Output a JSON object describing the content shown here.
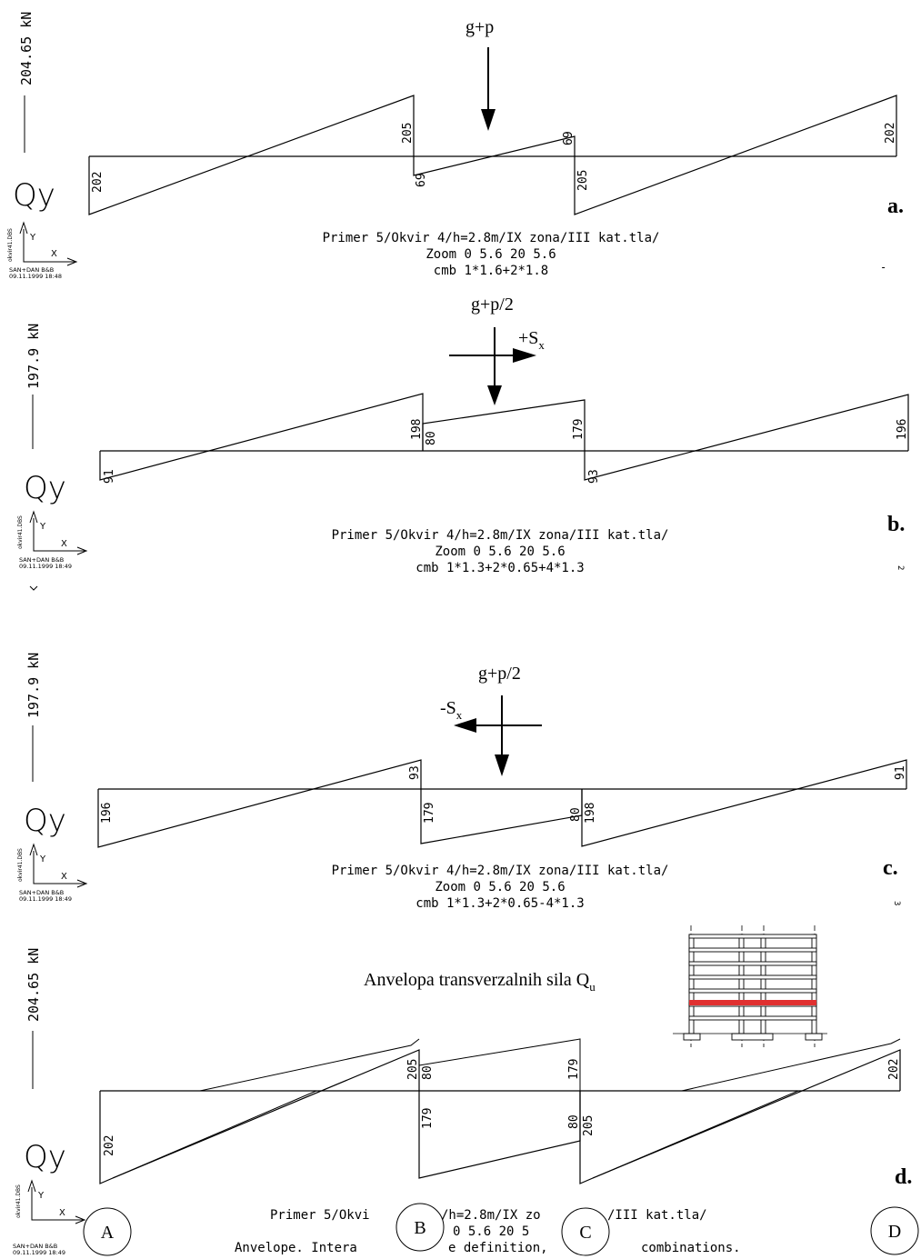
{
  "panels": [
    {
      "scale_label": "204.65 kN",
      "axis_symbol": "Qy",
      "load_label": "g+p",
      "seismic_label": "",
      "panel_letter": "a.",
      "caption_lines": [
        "Primer 5/Okvir 4/h=2.8m/IX zona/III kat.tla/",
        "Zoom 0 5.6 20 5.6",
        "cmb 1*1.6+2*1.8"
      ],
      "corner_mark": "-",
      "values": [
        "202",
        "205",
        "69",
        "69",
        "205",
        "202"
      ]
    },
    {
      "scale_label": "197.9 kN",
      "axis_symbol": "Qy",
      "load_label": "g+p/2",
      "seismic_label": "+Sx",
      "panel_letter": "b.",
      "caption_lines": [
        "Primer 5/Okvir 4/h=2.8m/IX zona/III kat.tla/",
        "Zoom 0 5.6 20 5.6",
        "cmb 1*1.3+2*0.65+4*1.3"
      ],
      "corner_mark": "2",
      "values": [
        "91",
        "198",
        "80",
        "179",
        "93",
        "196"
      ]
    },
    {
      "scale_label": "197.9 kN",
      "axis_symbol": "Qy",
      "load_label": "g+p/2",
      "seismic_label": "-Sx",
      "panel_letter": "c.",
      "caption_lines": [
        "Primer 5/Okvir 4/h=2.8m/IX zona/III kat.tla/",
        "Zoom 0 5.6 20 5.6",
        "cmb 1*1.3+2*0.65-4*1.3"
      ],
      "corner_mark": "3",
      "values": [
        "196",
        "93",
        "179",
        "80",
        "198",
        "91"
      ]
    },
    {
      "scale_label": "204.65 kN",
      "axis_symbol": "Qy",
      "load_label": "",
      "seismic_label": "",
      "panel_letter": "d.",
      "caption_lines": [
        "Primer 5/Okvi",
        "/h=2.8m/IX zo",
        "/III kat.tla/",
        "0 5.6 20 5",
        "Anvelope. Intera",
        "e definition,",
        "combinations."
      ],
      "corner_mark": "",
      "values": [
        "202",
        "205",
        "80",
        "179",
        "179",
        "80",
        "205",
        "202"
      ]
    }
  ],
  "stamp": {
    "file_label": "okvir41.DBS",
    "axis_y": "Y",
    "axis_x": "X",
    "program": "SAN+DAN B&B",
    "dates": [
      "09.11.1999 18:48",
      "09.11.1999 18:49",
      "09.11.1999 18:49",
      "09.11.1999 18:49"
    ]
  },
  "envelope_title": "Anvelopa transverzalnih sila Q",
  "envelope_subscript": "u",
  "axis_circles": [
    "A",
    "B",
    "C",
    "D"
  ],
  "colors": {
    "highlight_beam": "#e03030",
    "line": "#000000"
  }
}
